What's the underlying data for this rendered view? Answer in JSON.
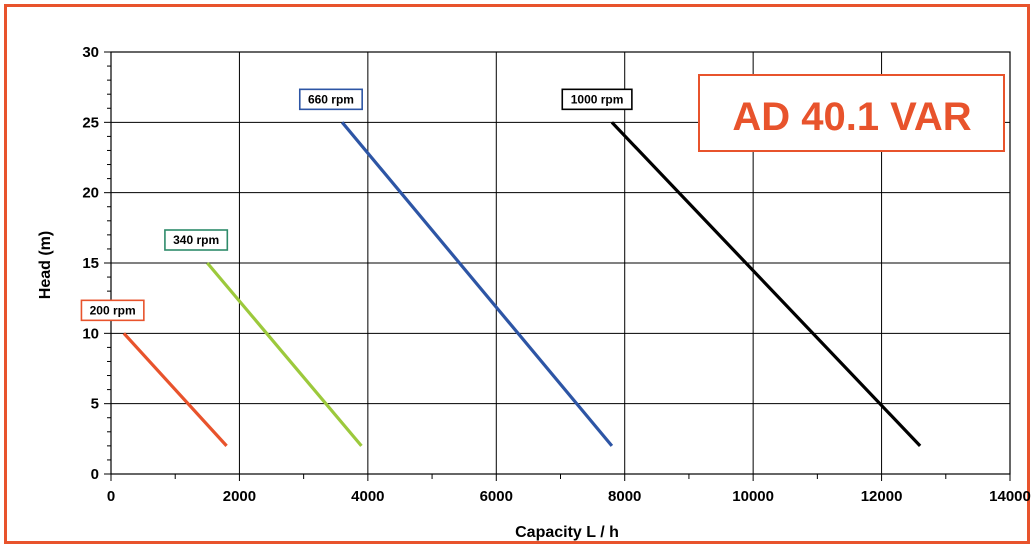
{
  "chart_data": {
    "type": "line",
    "title": "AD 40.1 VAR",
    "xlabel": "Capacity  L / h",
    "ylabel": "Head (m)",
    "xlim": [
      0,
      14000
    ],
    "ylim": [
      0,
      30
    ],
    "xticks": [
      0,
      2000,
      4000,
      6000,
      8000,
      10000,
      12000,
      14000
    ],
    "yticks": [
      0,
      5,
      10,
      15,
      20,
      25,
      30
    ],
    "grid": true,
    "series": [
      {
        "name": "200 rpm",
        "color": "#e8532c",
        "label_border": "#e8532c",
        "points": [
          [
            200,
            10
          ],
          [
            1800,
            2
          ]
        ]
      },
      {
        "name": "340 rpm",
        "color": "#9cc93c",
        "label_border": "#2e8b6a",
        "points": [
          [
            1500,
            15
          ],
          [
            3900,
            2
          ]
        ]
      },
      {
        "name": "660 rpm",
        "color": "#2d55a5",
        "label_border": "#2d55a5",
        "points": [
          [
            3600,
            25
          ],
          [
            7800,
            2
          ]
        ]
      },
      {
        "name": "1000 rpm",
        "color": "#000000",
        "label_border": "#000000",
        "points": [
          [
            7800,
            25
          ],
          [
            12600,
            2
          ]
        ]
      }
    ]
  }
}
